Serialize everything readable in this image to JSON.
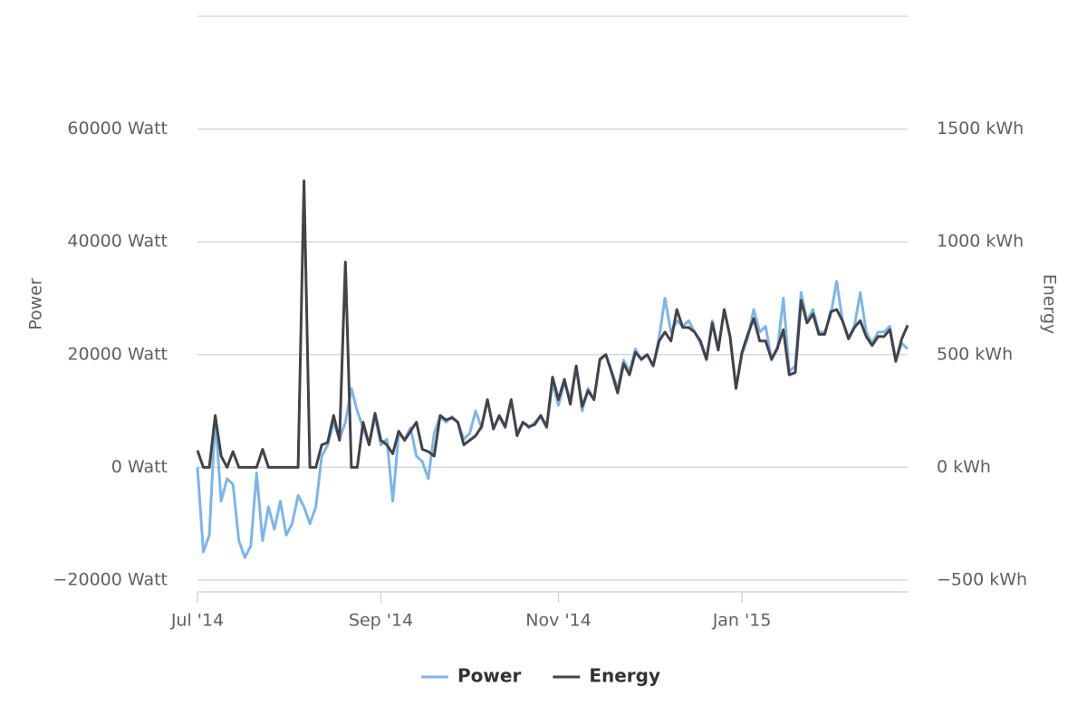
{
  "chart_data": {
    "type": "line",
    "categories": [
      "Jul '14",
      null,
      null,
      null,
      null,
      null,
      null,
      null,
      null,
      null,
      null,
      null,
      null,
      null,
      null,
      null,
      null,
      null,
      null,
      null,
      null,
      null,
      null,
      null,
      null,
      null,
      null,
      null,
      null,
      null,
      null,
      "Sep '14",
      null,
      null,
      null,
      null,
      null,
      null,
      null,
      null,
      null,
      null,
      null,
      null,
      null,
      null,
      null,
      null,
      null,
      null,
      null,
      null,
      null,
      null,
      null,
      null,
      null,
      null,
      null,
      null,
      null,
      "Nov '14",
      null,
      null,
      null,
      null,
      null,
      null,
      null,
      null,
      null,
      null,
      null,
      null,
      null,
      null,
      null,
      null,
      null,
      null,
      null,
      null,
      null,
      null,
      null,
      null,
      null,
      null,
      null,
      null,
      null,
      null,
      "Jan '15",
      null,
      null,
      null,
      null,
      null,
      null,
      null,
      null,
      null,
      null,
      null,
      null,
      null,
      null,
      null,
      null,
      null,
      null,
      null,
      null,
      null,
      null,
      null,
      null,
      null,
      null,
      null,
      null
    ],
    "series": [
      {
        "name": "Power",
        "color": "#7cb5ec",
        "values": [
          0,
          -15000,
          -12000,
          9000,
          -6000,
          -2000,
          -3000,
          -13000,
          -16000,
          -14000,
          -1000,
          -13000,
          -7000,
          -11000,
          -6000,
          -12000,
          -10000,
          -5000,
          -7000,
          -10000,
          -7000,
          2000,
          4000,
          8000,
          5000,
          8000,
          14000,
          10000,
          7000,
          4000,
          9000,
          4000,
          5000,
          -6000,
          6000,
          5000,
          7000,
          2000,
          1000,
          -2000,
          6000,
          9000,
          8000,
          9000,
          8000,
          5000,
          6000,
          10000,
          7000,
          12000,
          7000,
          9000,
          7000,
          12000,
          6000,
          8000,
          7000,
          8000,
          9000,
          7000,
          15000,
          11000,
          15000,
          12000,
          18000,
          10000,
          14000,
          12000,
          19000,
          20000,
          17000,
          14000,
          19000,
          17000,
          21000,
          19000,
          20000,
          18000,
          23000,
          30000,
          24000,
          26000,
          25000,
          26000,
          24000,
          22000,
          19000,
          26000,
          21000,
          28000,
          23000,
          14000,
          20000,
          23000,
          28000,
          24000,
          25000,
          19000,
          21000,
          30000,
          17000,
          18000,
          31000,
          26000,
          28000,
          24000,
          24000,
          27000,
          33000,
          26000,
          23000,
          25000,
          31000,
          24000,
          22000,
          24000,
          24000,
          25000,
          19000,
          22000,
          21000
        ]
      },
      {
        "name": "Energy",
        "color": "#434348",
        "axis": "y2",
        "values": [
          75,
          0,
          0,
          230,
          50,
          0,
          70,
          0,
          0,
          0,
          0,
          80,
          0,
          0,
          0,
          0,
          0,
          0,
          1270,
          0,
          0,
          100,
          110,
          230,
          120,
          910,
          0,
          0,
          200,
          100,
          240,
          120,
          100,
          60,
          160,
          120,
          160,
          200,
          80,
          70,
          50,
          230,
          210,
          220,
          200,
          100,
          120,
          140,
          180,
          300,
          170,
          230,
          180,
          300,
          140,
          200,
          180,
          190,
          230,
          180,
          400,
          300,
          390,
          280,
          450,
          270,
          340,
          300,
          480,
          500,
          420,
          330,
          460,
          410,
          510,
          480,
          500,
          450,
          560,
          600,
          560,
          700,
          620,
          620,
          600,
          560,
          480,
          640,
          520,
          700,
          580,
          350,
          510,
          590,
          660,
          560,
          560,
          480,
          530,
          610,
          410,
          420,
          740,
          640,
          680,
          590,
          590,
          690,
          700,
          650,
          570,
          620,
          650,
          580,
          540,
          580,
          580,
          610,
          470,
          570,
          630
        ]
      }
    ],
    "y_label": "Power",
    "y2_label": "Energy",
    "ylim": [
      -20000,
      80000
    ],
    "yticks": [
      {
        "value": -20000,
        "label": "−20000 Watt"
      },
      {
        "value": 0,
        "label": "0 Watt"
      },
      {
        "value": 20000,
        "label": "20000 Watt"
      },
      {
        "value": 40000,
        "label": "40000 Watt"
      },
      {
        "value": 60000,
        "label": "60000 Watt"
      }
    ],
    "y2lim": [
      -500,
      2000
    ],
    "y2ticks": [
      {
        "value": -500,
        "label": "−500 kWh"
      },
      {
        "value": 0,
        "label": "0 kWh"
      },
      {
        "value": 500,
        "label": "500 kWh"
      },
      {
        "value": 1000,
        "label": "1000 kWh"
      },
      {
        "value": 1500,
        "label": "1500 kWh"
      }
    ],
    "grid": true,
    "legend": "bottom"
  }
}
